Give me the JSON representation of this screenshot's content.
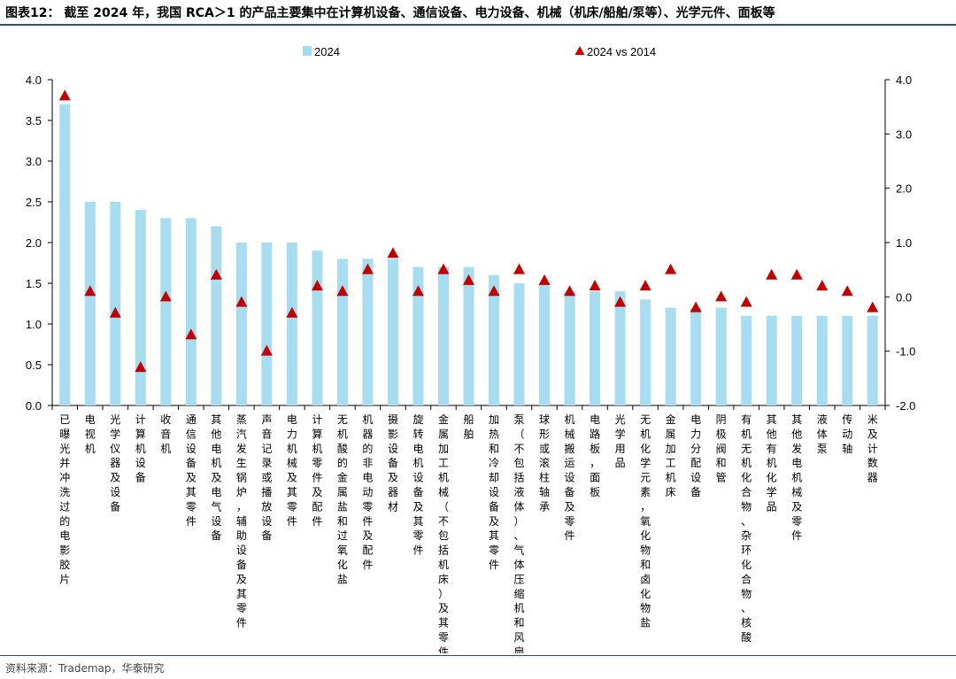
{
  "header": {
    "title": "图表12： 截至 2024 年，我国 RCA＞1 的产品主要集中在计算机设备、通信设备、电力设备、机械（机床/船舶/泵等）、光学元件、面板等"
  },
  "footer": {
    "source": "资料来源：Trademap，华泰研究"
  },
  "colors": {
    "bar": "#a8dcf1",
    "marker": "#c00000",
    "rule": "#2b4d7a"
  },
  "chart_data": {
    "type": "bar",
    "title": "",
    "categories": [
      "已曝光并冲洗过的电影胶片",
      "电视机",
      "光学仪器及设备",
      "计算机设备",
      "收音机",
      "通信设备及其零件",
      "其他电机及电气设备",
      "蒸汽发生锅炉，辅助设备及其零件",
      "声音记录或播放设备",
      "电力机械及其零件",
      "计算机零件及配件",
      "无机酸的金属盐和过氧化盐",
      "机器的非电动零件及配件",
      "摄影设备及器材",
      "旋转电机设备及其零件",
      "金属加工机械（不包括机床）及其零件",
      "船舶",
      "加热和冷却设备及其零件",
      "泵（不包括液体）、气体压缩机和风扇等",
      "球形或滚柱轴承",
      "机械搬运设备及零件",
      "电路板，面板",
      "光学用品",
      "无机化学元素，氧化物和卤化物盐",
      "金属加工机床",
      "电力分配设备",
      "阴极阀和管",
      "有机无机化合物、杂环化合物、核酸",
      "其他有机化学品",
      "其他发电机械及零件",
      "液体泵",
      "传动轴",
      "米及计数器"
    ],
    "series": [
      {
        "name": "2024",
        "type": "bar",
        "axis": "left",
        "values": [
          3.7,
          2.5,
          2.5,
          2.4,
          2.3,
          2.3,
          2.2,
          2.0,
          2.0,
          2.0,
          1.9,
          1.8,
          1.8,
          1.8,
          1.7,
          1.7,
          1.7,
          1.6,
          1.5,
          1.5,
          1.4,
          1.4,
          1.4,
          1.3,
          1.2,
          1.2,
          1.2,
          1.1,
          1.1,
          1.1,
          1.1,
          1.1,
          1.1
        ]
      },
      {
        "name": "2024 vs 2014",
        "type": "marker",
        "axis": "right",
        "values": [
          3.7,
          0.1,
          -0.3,
          -1.3,
          0.0,
          -0.7,
          0.4,
          -0.1,
          -1.0,
          -0.3,
          0.2,
          0.1,
          0.5,
          0.8,
          0.1,
          0.5,
          0.3,
          0.1,
          0.5,
          0.3,
          0.1,
          0.2,
          -0.1,
          0.2,
          0.5,
          -0.2,
          0.0,
          -0.1,
          0.4,
          0.4,
          0.2,
          0.1,
          -0.2
        ]
      }
    ],
    "left_axis": {
      "ylim": [
        0,
        4.0
      ],
      "ticks": [
        "0.0",
        "0.5",
        "1.0",
        "1.5",
        "2.0",
        "2.5",
        "3.0",
        "3.5",
        "4.0"
      ]
    },
    "right_axis": {
      "ylim": [
        -2.0,
        4.0
      ],
      "ticks": [
        "-2.0",
        "-1.0",
        "0.0",
        "1.0",
        "2.0",
        "3.0",
        "4.0"
      ]
    },
    "legend": {
      "placement": "top-center"
    },
    "grid": false
  }
}
